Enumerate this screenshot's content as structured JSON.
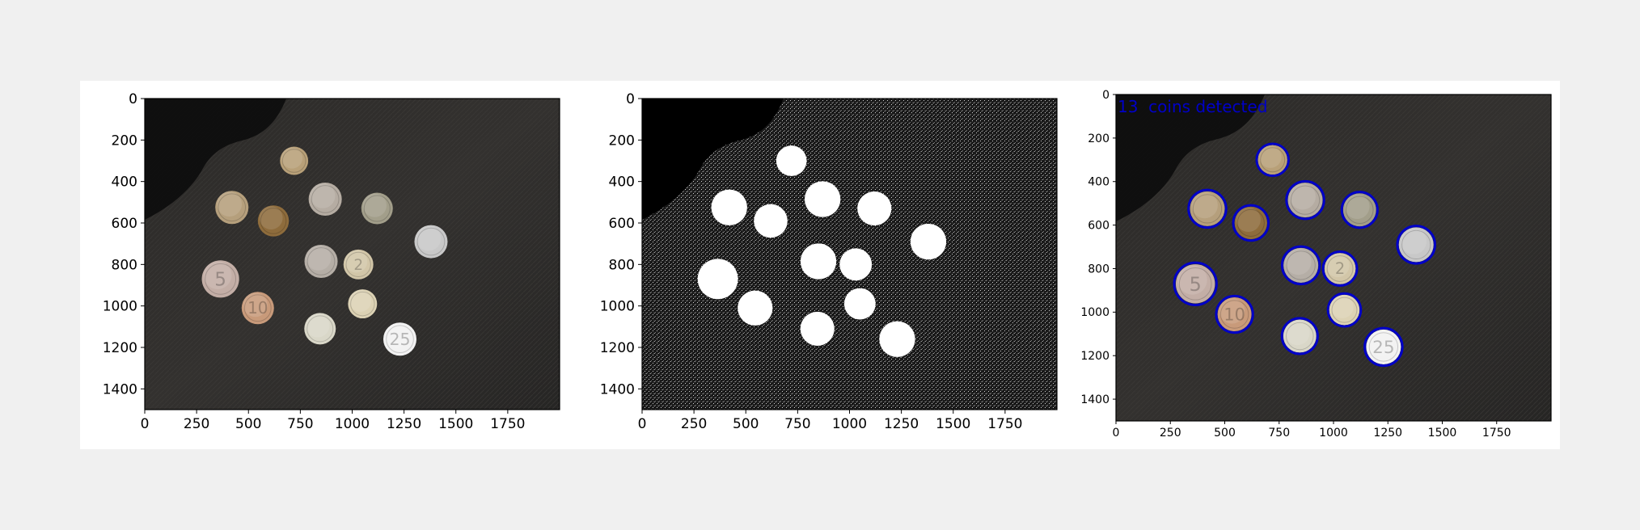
{
  "colors": {
    "page_background": "#f0f0f0",
    "figure_background": "#ffffff",
    "detection_circle": "#0000c8",
    "annotation_text": "#0000c8",
    "axis_color": "#000000"
  },
  "panels": [
    {
      "id": "original",
      "description_kind": "photo",
      "xlim": [
        0,
        2000
      ],
      "ylim_top_to_bottom": [
        0,
        1500
      ],
      "x_ticks": [
        "0",
        "250",
        "500",
        "750",
        "1000",
        "1250",
        "1500",
        "1750"
      ],
      "y_ticks": [
        "0",
        "200",
        "400",
        "600",
        "800",
        "1000",
        "1200",
        "1400"
      ]
    },
    {
      "id": "binary_mask",
      "description_kind": "thresholded mask",
      "xlim": [
        0,
        2000
      ],
      "ylim_top_to_bottom": [
        0,
        1500
      ],
      "x_ticks": [
        "0",
        "250",
        "500",
        "750",
        "1000",
        "1250",
        "1500",
        "1750"
      ],
      "y_ticks": [
        "0",
        "200",
        "400",
        "600",
        "800",
        "1000",
        "1200",
        "1400"
      ]
    },
    {
      "id": "detections",
      "description_kind": "photo with detected circles",
      "annotation": "13  coins detected",
      "xlim": [
        0,
        2000
      ],
      "ylim_top_to_bottom": [
        0,
        1500
      ],
      "x_ticks": [
        "0",
        "250",
        "500",
        "750",
        "1000",
        "1250",
        "1500",
        "1750"
      ],
      "y_ticks": [
        "0",
        "200",
        "400",
        "600",
        "800",
        "1000",
        "1200",
        "1400"
      ]
    }
  ],
  "coins": [
    {
      "x": 720,
      "y": 300,
      "r": 68,
      "tone": "#b8a078",
      "label": ""
    },
    {
      "x": 420,
      "y": 525,
      "r": 80,
      "tone": "#b59f7c",
      "label": ""
    },
    {
      "x": 620,
      "y": 590,
      "r": 75,
      "tone": "#8e6c3c",
      "label": ""
    },
    {
      "x": 870,
      "y": 485,
      "r": 80,
      "tone": "#b5aca2",
      "label": ""
    },
    {
      "x": 1120,
      "y": 530,
      "r": 76,
      "tone": "#a29e8a",
      "label": ""
    },
    {
      "x": 1380,
      "y": 690,
      "r": 80,
      "tone": "#c8c8c8",
      "label": ""
    },
    {
      "x": 850,
      "y": 785,
      "r": 80,
      "tone": "#b5aea6",
      "label": ""
    },
    {
      "x": 1030,
      "y": 800,
      "r": 72,
      "tone": "#d2c6a8",
      "label": "2"
    },
    {
      "x": 365,
      "y": 870,
      "r": 90,
      "tone": "#c3aea6",
      "label": "5"
    },
    {
      "x": 545,
      "y": 1010,
      "r": 78,
      "tone": "#c89a7a",
      "label": "10"
    },
    {
      "x": 1050,
      "y": 990,
      "r": 70,
      "tone": "#dcd2b4",
      "label": ""
    },
    {
      "x": 845,
      "y": 1110,
      "r": 76,
      "tone": "#d9d7c8",
      "label": ""
    },
    {
      "x": 1230,
      "y": 1160,
      "r": 80,
      "tone": "#f2f2f2",
      "label": "25"
    }
  ]
}
